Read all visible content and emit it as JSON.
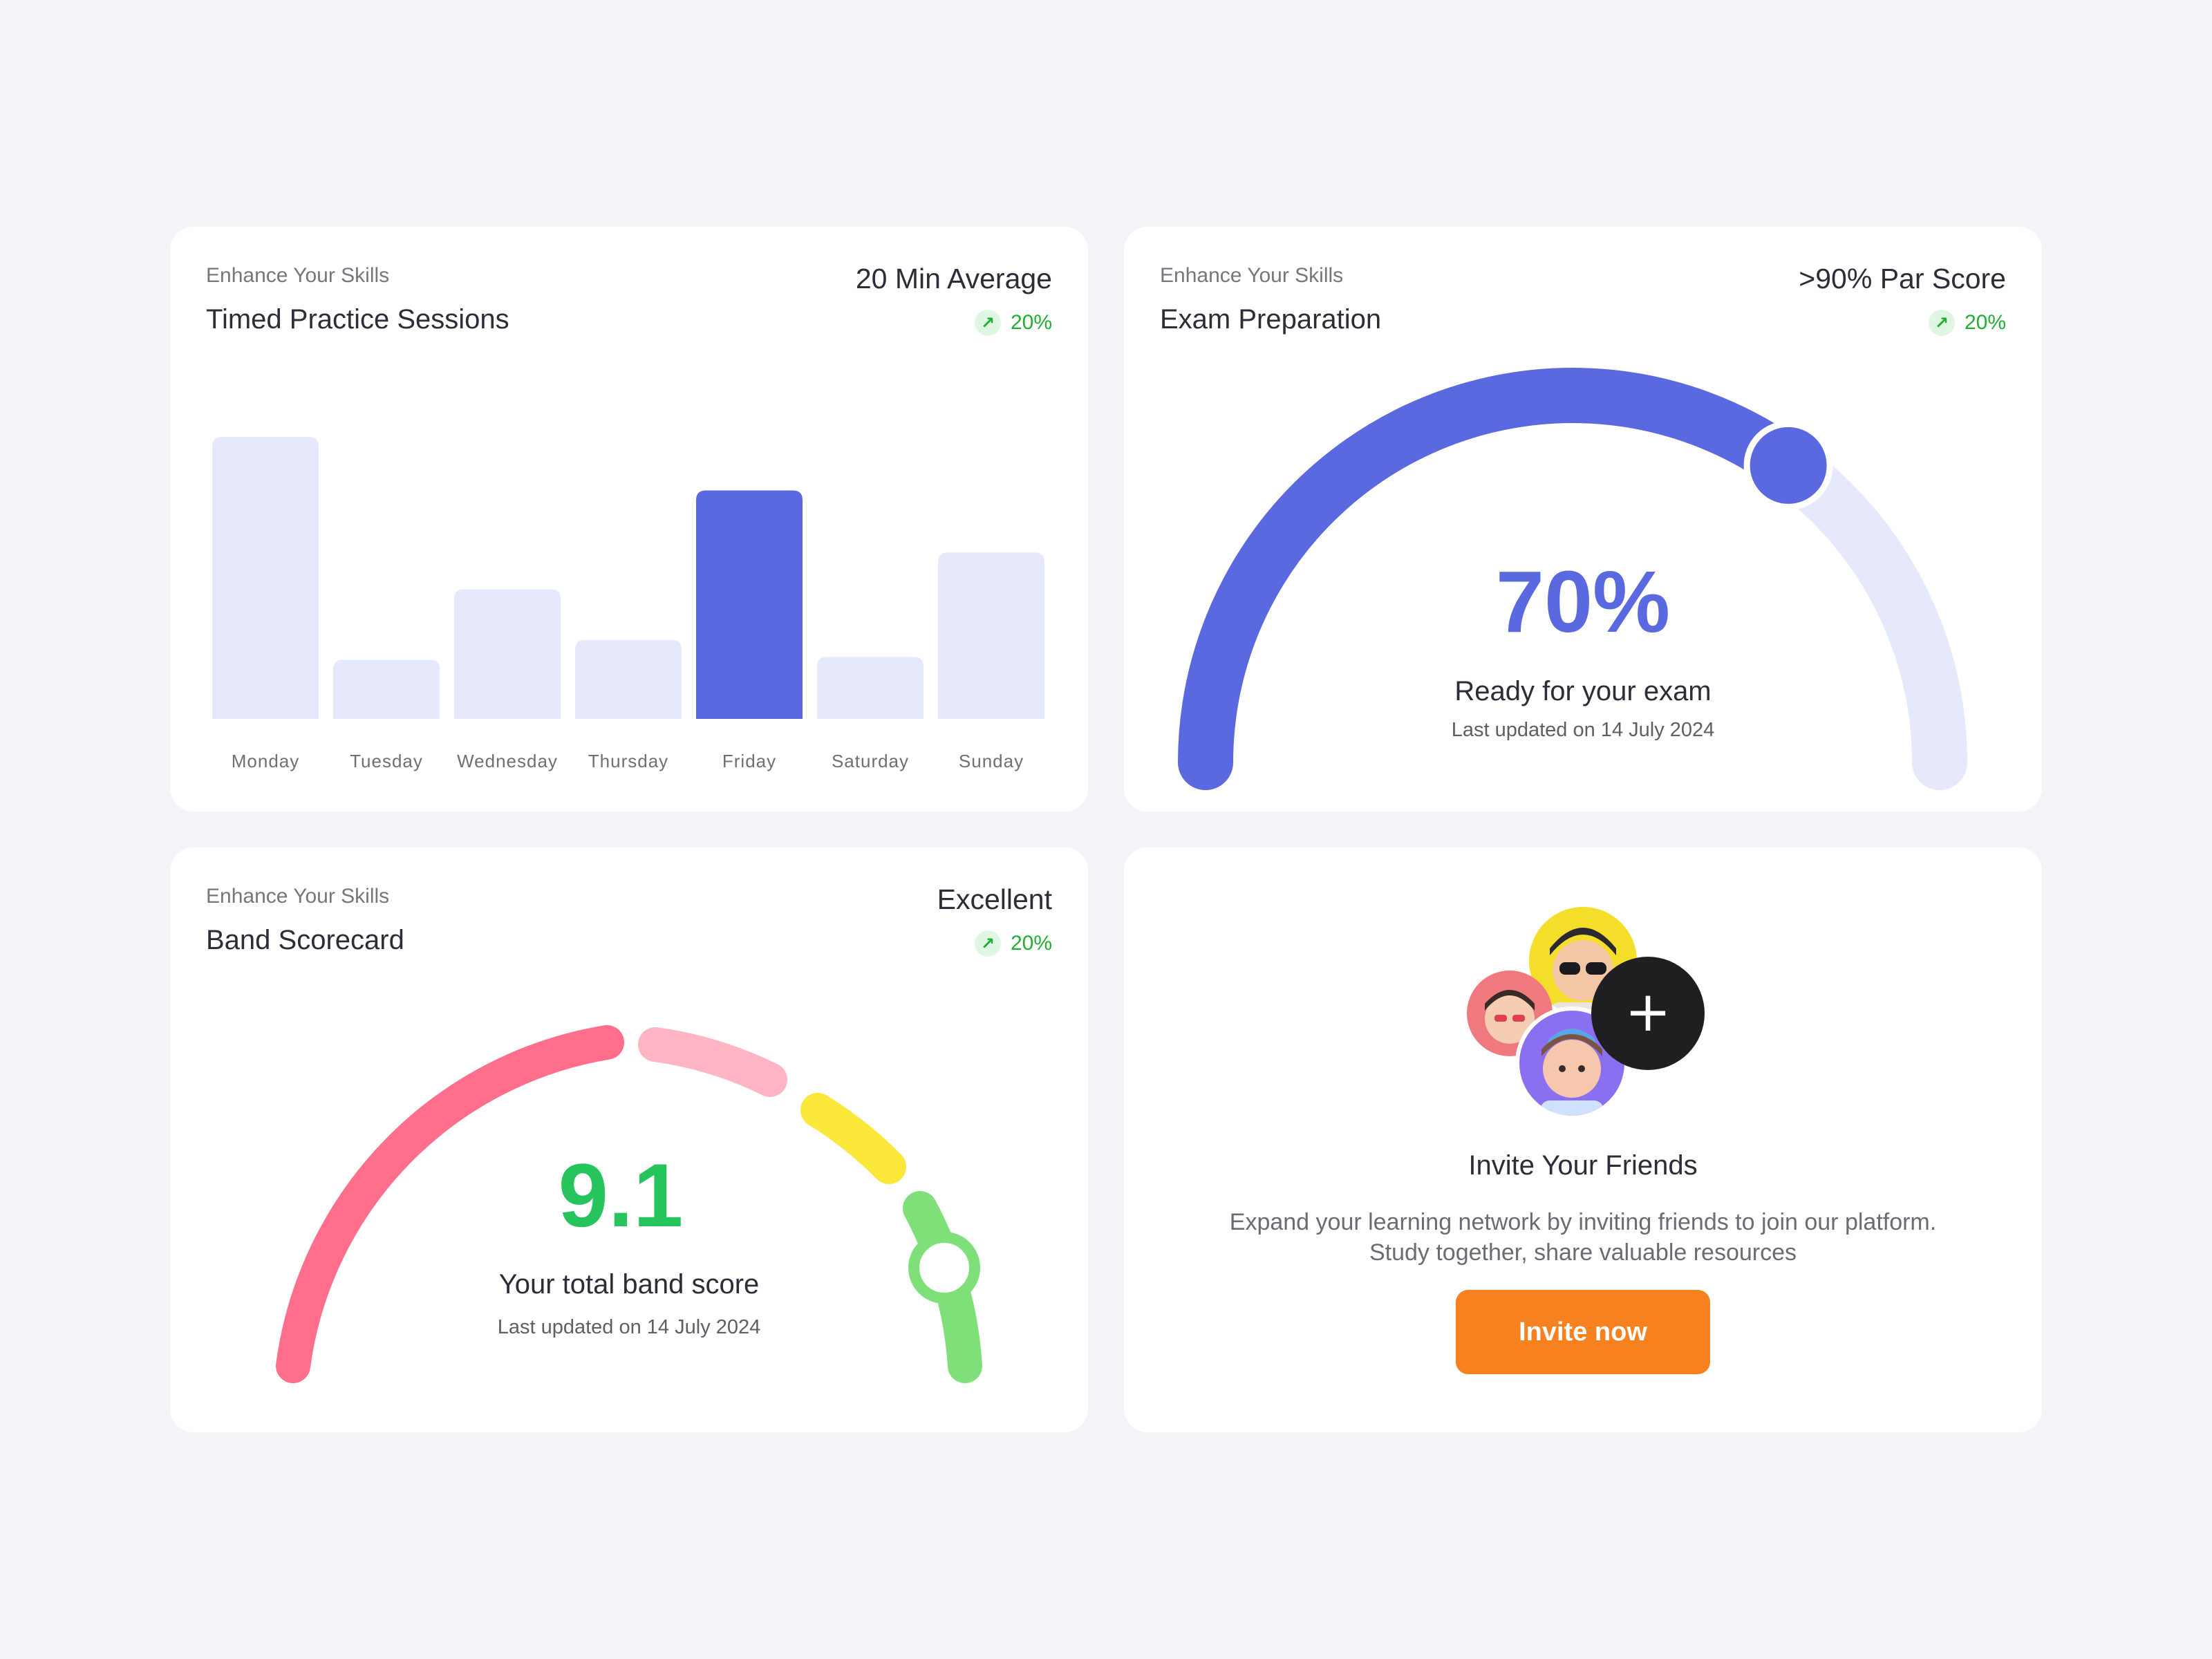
{
  "cards": {
    "practice": {
      "eyebrow": "Enhance Your Skills",
      "title": "Timed Practice Sessions",
      "metric": "20 Min Average",
      "trend": {
        "icon": "arrow-up-right-icon",
        "value": "20%"
      }
    },
    "exam": {
      "eyebrow": "Enhance Your Skills",
      "title": "Exam Preparation",
      "metric": ">90% Par Score",
      "trend": {
        "icon": "arrow-up-right-icon",
        "value": "20%"
      },
      "gauge": {
        "value_label": "70%",
        "progress": 0.7,
        "caption": "Ready for your exam",
        "updated": "Last updated on 14 July 2024"
      }
    },
    "band": {
      "eyebrow": "Enhance Your Skills",
      "title": "Band Scorecard",
      "metric": "Excellent",
      "trend": {
        "icon": "arrow-up-right-icon",
        "value": "20%"
      },
      "gauge": {
        "value_label": "9.1",
        "caption": "Your total band score",
        "updated": "Last updated on 14 July 2024"
      }
    },
    "invite": {
      "title": "Invite Your Friends",
      "description_line1": "Expand your learning network by inviting friends to join our platform.",
      "description_line2": "Study together, share valuable resources",
      "button_label": "Invite now",
      "add_icon": "plus-icon"
    }
  },
  "colors": {
    "accent": "#5a69e0",
    "accent_light": "#e6e9fb",
    "green": "#25c45d",
    "orange": "#f7801f",
    "band_red": "#ff6f8b",
    "band_pink": "#ffb5c4",
    "band_yellow": "#fce83a",
    "band_green": "#7fe07a"
  },
  "chart_data": {
    "type": "bar",
    "categories": [
      "Monday",
      "Tuesday",
      "Wednesday",
      "Thursday",
      "Friday",
      "Saturday",
      "Sunday"
    ],
    "values": [
      100,
      21,
      46,
      28,
      81,
      22,
      59
    ],
    "highlight": "Friday",
    "title": "",
    "xlabel": "",
    "ylabel": "",
    "ylim": [
      0,
      100
    ],
    "grid": false
  }
}
